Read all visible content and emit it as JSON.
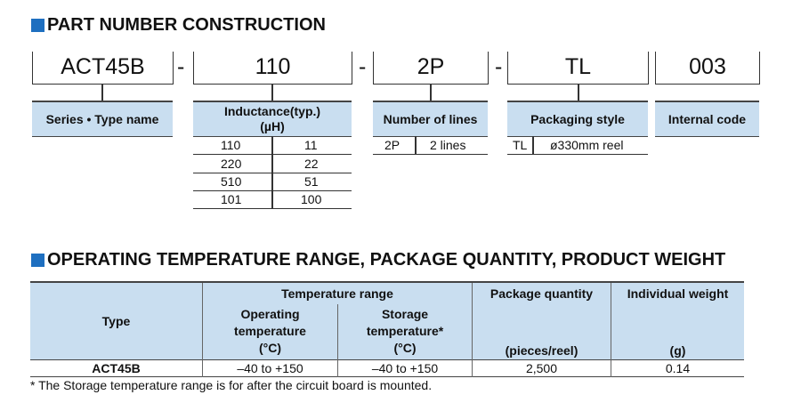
{
  "section1": {
    "title": "PART NUMBER CONSTRUCTION",
    "codes": [
      "ACT45B",
      "110",
      "2P",
      "TL",
      "003"
    ],
    "separator": "-",
    "series": {
      "header": "Series • Type name"
    },
    "inductance": {
      "header_line1": "Inductance(typ.)",
      "header_line2": "(µH)",
      "rows": [
        [
          "110",
          "11"
        ],
        [
          "220",
          "22"
        ],
        [
          "510",
          "51"
        ],
        [
          "101",
          "100"
        ]
      ]
    },
    "lines": {
      "header": "Number of lines",
      "rows": [
        [
          "2P",
          "2 lines"
        ]
      ]
    },
    "packaging": {
      "header": "Packaging style",
      "rows": [
        [
          "TL",
          "ø330mm reel"
        ]
      ]
    },
    "internal": {
      "header": "Internal code"
    }
  },
  "section2": {
    "title": "OPERATING TEMPERATURE RANGE, PACKAGE QUANTITY, PRODUCT WEIGHT",
    "headers": {
      "type": "Type",
      "temp_range": "Temperature range",
      "operating": "Operating temperature",
      "storage": "Storage temperature*",
      "temp_unit": "(°C)",
      "package": "Package quantity",
      "package_unit": "(pieces/reel)",
      "weight": "Individual weight",
      "weight_unit": "(g)"
    },
    "row": {
      "type": "ACT45B",
      "operating": "–40 to +150",
      "storage": "–40 to +150",
      "package": "2,500",
      "weight": "0.14"
    },
    "footnote": "* The Storage temperature range is for after the circuit board is mounted."
  },
  "colors": {
    "accent": "#1e6fc0",
    "header_bg": "#c9def0"
  }
}
